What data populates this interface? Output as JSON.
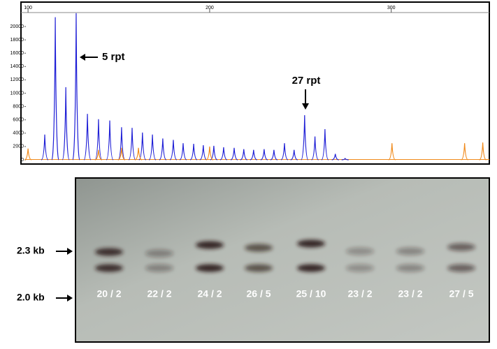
{
  "chart_data": {
    "type": "peaks",
    "xlim": [
      98.8,
      354
    ],
    "xticks": [
      100,
      200,
      300
    ],
    "ylim": [
      0,
      22000
    ],
    "yticks": [
      0,
      2000,
      4000,
      6000,
      8000,
      10000,
      12000,
      14000,
      16000,
      18000,
      20000
    ],
    "series": [
      {
        "color": "#1f1fd6",
        "x": [
          109.2,
          115,
          120.8,
          126.5,
          132.7,
          138.8,
          145,
          151.5,
          157.3,
          163,
          168.5,
          174.2,
          180,
          185.4,
          191.2,
          196.5,
          202.3,
          207.7,
          213.5,
          218.8,
          224.2,
          230,
          235.4,
          241.2,
          246.5,
          252.3,
          258,
          263.5,
          269.2,
          274.6
        ],
        "values": [
          3800,
          21400,
          10900,
          22000,
          6900,
          6100,
          5900,
          4900,
          4800,
          4100,
          3800,
          3200,
          3000,
          2500,
          2400,
          2200,
          2100,
          1900,
          1800,
          1600,
          1500,
          1600,
          1500,
          2500,
          1500,
          6700,
          3500,
          4600,
          900,
          200
        ]
      },
      {
        "color": "#f08a1c",
        "x": [
          100,
          138.8,
          151.5,
          160.8,
          200,
          300.4,
          340.4,
          350.4
        ],
        "values": [
          1700,
          1500,
          1800,
          1800,
          2000,
          2500,
          2500,
          2600
        ]
      }
    ],
    "annotations": [
      "5 rpt",
      "27 rpt"
    ]
  },
  "gel": {
    "markers": [
      "2.3 kb",
      "2.0 kb"
    ],
    "lanes": [
      "20 / 2",
      "22 / 2",
      "24 / 2",
      "26 / 5",
      "25 / 10",
      "23 / 2",
      "23 / 2",
      "27 / 5"
    ]
  }
}
